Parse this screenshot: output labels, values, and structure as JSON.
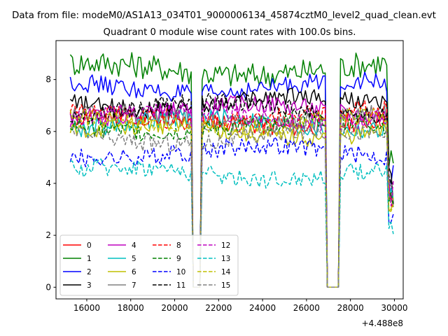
{
  "figure": {
    "suptitle": "Data from file: modeM0/AS1A13_034T01_9000006134_45874cztM0_level2_quad_clean.evt",
    "title": "Quadrant 0 module wise count rates with 100.0s bins.",
    "x_offset_label": "+4.488e8"
  },
  "chart_data": {
    "type": "line",
    "title": "Quadrant 0 module wise count rates with 100.0s bins.",
    "xlabel": "",
    "ylabel": "",
    "x_offset": 448800000,
    "xlim": [
      14600,
      30400
    ],
    "ylim": [
      -0.45,
      9.5
    ],
    "xticks": [
      16000,
      18000,
      20000,
      22000,
      24000,
      26000,
      28000,
      30000
    ],
    "xtick_labels": [
      "16000",
      "18000",
      "20000",
      "22000",
      "24000",
      "26000",
      "28000",
      "30000"
    ],
    "yticks": [
      0,
      2,
      4,
      6,
      8
    ],
    "ytick_labels": [
      "0",
      "2",
      "4",
      "6",
      "8"
    ],
    "grid": false,
    "legend_position": "lower-left",
    "legend_columns": 4,
    "time_range": [
      15250,
      29950
    ],
    "gaps": [
      {
        "start": 20800,
        "end": 21150,
        "rate": 0
      },
      {
        "start": 26950,
        "end": 27500,
        "rate": 0
      }
    ],
    "series": [
      {
        "name": "0",
        "color": "#ff0000",
        "style": "solid",
        "mean": 6.4
      },
      {
        "name": "1",
        "color": "#008000",
        "style": "solid",
        "mean": 8.4
      },
      {
        "name": "2",
        "color": "#0000ff",
        "style": "solid",
        "mean": 7.7
      },
      {
        "name": "3",
        "color": "#000000",
        "style": "solid",
        "mean": 7.1
      },
      {
        "name": "4",
        "color": "#bf00bf",
        "style": "solid",
        "mean": 6.8
      },
      {
        "name": "5",
        "color": "#00bfbf",
        "style": "solid",
        "mean": 6.3
      },
      {
        "name": "6",
        "color": "#bfbf00",
        "style": "solid",
        "mean": 6.0
      },
      {
        "name": "7",
        "color": "#808080",
        "style": "solid",
        "mean": 6.5
      },
      {
        "name": "8",
        "color": "#ff0000",
        "style": "dashed",
        "mean": 6.6
      },
      {
        "name": "9",
        "color": "#008000",
        "style": "dashed",
        "mean": 6.2
      },
      {
        "name": "10",
        "color": "#0000ff",
        "style": "dashed",
        "mean": 5.2
      },
      {
        "name": "11",
        "color": "#000000",
        "style": "dashed",
        "mean": 6.9
      },
      {
        "name": "12",
        "color": "#bf00bf",
        "style": "dashed",
        "mean": 6.6
      },
      {
        "name": "13",
        "color": "#00bfbf",
        "style": "dashed",
        "mean": 4.4
      },
      {
        "name": "14",
        "color": "#bfbf00",
        "style": "dashed",
        "mean": 6.3
      },
      {
        "name": "15",
        "color": "#808080",
        "style": "dashed",
        "mean": 5.8
      }
    ]
  }
}
